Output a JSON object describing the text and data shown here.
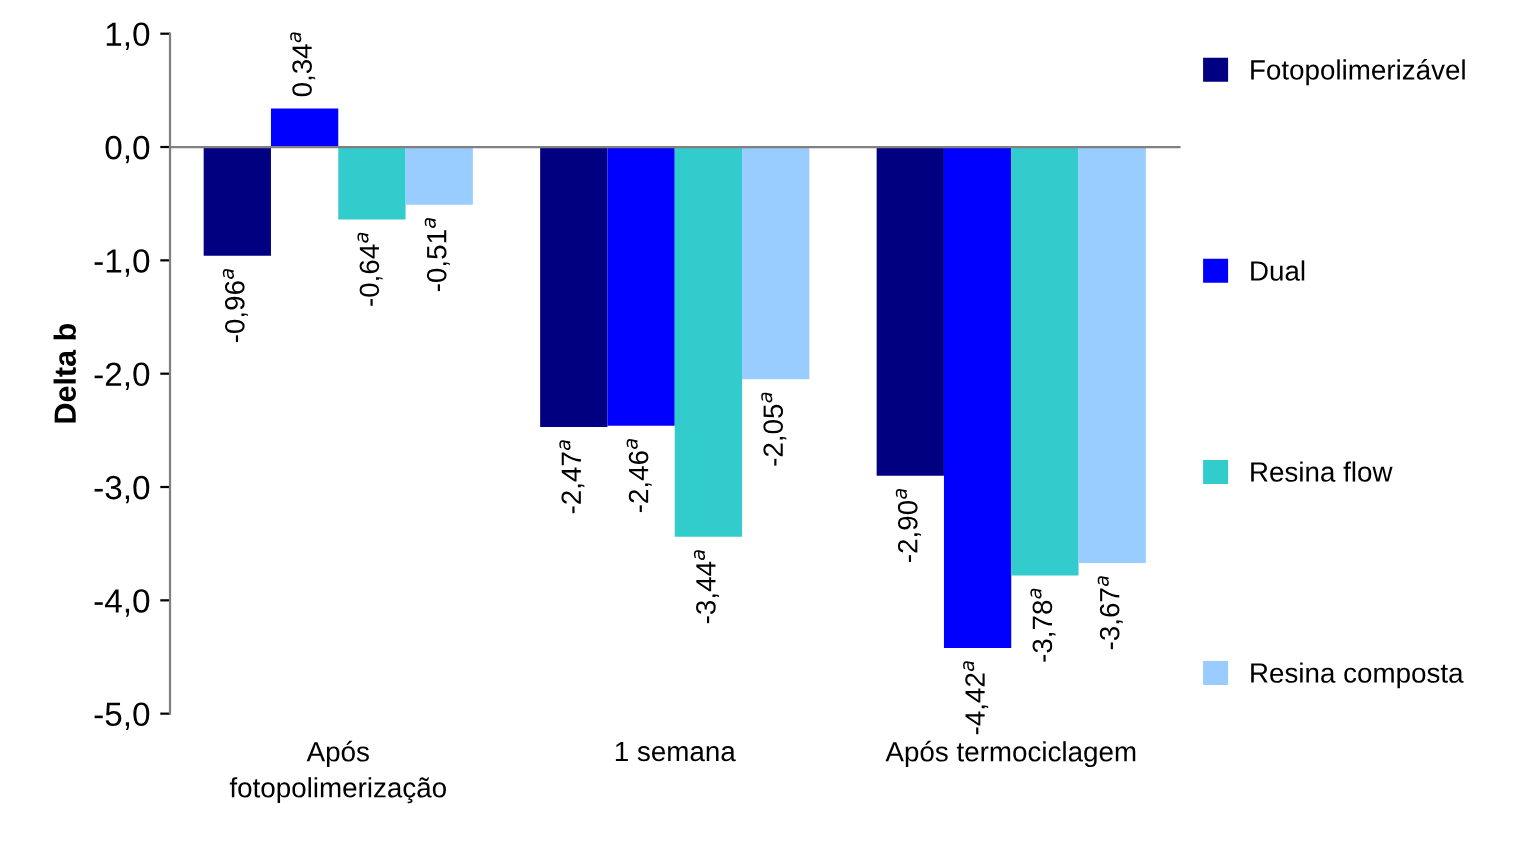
{
  "chart_data": {
    "type": "bar",
    "ylabel": "Delta b",
    "categories": [
      "Após\nfotopolimerização",
      "1 semana",
      "Após termociclagem"
    ],
    "series": [
      {
        "name": "Fotopolimerizável",
        "color": "#000080",
        "values": [
          -0.96,
          -2.47,
          -2.9
        ],
        "value_labels": [
          "-0,96$^{a}$",
          "-2,47$^{a}$",
          "-2,90$^{a}$"
        ]
      },
      {
        "name": "Dual",
        "color": "#0000ff",
        "values": [
          0.34,
          -2.46,
          -4.42
        ],
        "value_labels": [
          "0,34$^{a}$",
          "-2,46$^{a}$",
          "-4,42$^{a}$"
        ]
      },
      {
        "name": "Resina flow",
        "color": "#33cccc",
        "values": [
          -0.64,
          -3.44,
          -3.78
        ],
        "value_labels": [
          "-0,64$^{a}$",
          "-3,44$^{a}$",
          "-3,78$^{a}$"
        ]
      },
      {
        "name": "Resina composta",
        "color": "#99ccff",
        "values": [
          -0.51,
          -2.05,
          -3.67
        ],
        "value_labels": [
          "-0,51$^{a}$",
          "-2,05$^{a}$",
          "-3,67$^{a}$"
        ]
      }
    ],
    "ylim": [
      -5.0,
      1.0
    ],
    "yticks": [
      {
        "value": -5.0,
        "label": "-5,0"
      },
      {
        "value": -4.0,
        "label": "-4,0"
      },
      {
        "value": -3.0,
        "label": "-3,0"
      },
      {
        "value": -2.0,
        "label": "-2,0"
      },
      {
        "value": -1.0,
        "label": "-1,0"
      },
      {
        "value": 0.0,
        "label": "0,0"
      },
      {
        "value": 1.0,
        "label": "1,0"
      }
    ],
    "legend": "right"
  }
}
